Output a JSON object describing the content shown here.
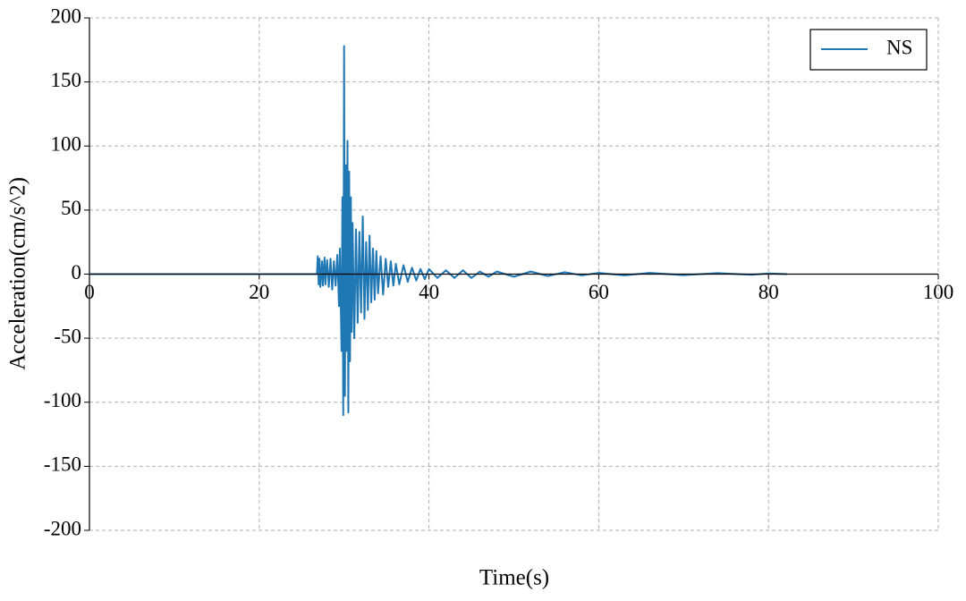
{
  "chart_data": {
    "type": "line",
    "xlabel": "Time(s)",
    "ylabel": "Acceleration(cm/s^2)",
    "x": [
      0,
      26.8,
      26.9,
      27.0,
      27.1,
      27.2,
      27.4,
      27.5,
      27.7,
      27.8,
      28.0,
      28.2,
      28.4,
      28.6,
      28.8,
      29.0,
      29.2,
      29.4,
      29.5,
      29.7,
      29.8,
      29.9,
      30.0,
      30.1,
      30.2,
      30.3,
      30.4,
      30.5,
      30.6,
      30.7,
      30.8,
      30.9,
      31.0,
      31.2,
      31.4,
      31.6,
      31.8,
      32.0,
      32.2,
      32.4,
      32.6,
      32.8,
      33.0,
      33.2,
      33.4,
      33.6,
      33.8,
      34.0,
      34.3,
      34.6,
      34.9,
      35.2,
      35.5,
      35.8,
      36.1,
      36.5,
      37.0,
      37.5,
      38.0,
      38.5,
      39.0,
      39.5,
      40.0,
      41.0,
      42.0,
      43.0,
      44.0,
      45.0,
      46.0,
      47.0,
      48.0,
      50,
      52,
      54,
      56,
      58,
      60,
      63,
      66,
      70,
      74,
      78,
      80,
      82.2
    ],
    "series": [
      {
        "name": "NS",
        "color": "#1f77b4",
        "values": [
          0,
          0,
          14,
          -8,
          12,
          -10,
          10,
          -9,
          13,
          -8,
          11,
          -10,
          12,
          -12,
          10,
          -9,
          15,
          -25,
          20,
          -60,
          60,
          -110,
          178,
          -95,
          85,
          -60,
          104,
          -108,
          80,
          -68,
          60,
          -45,
          40,
          -50,
          35,
          -38,
          33,
          -30,
          45,
          -35,
          25,
          -28,
          30,
          -22,
          20,
          -20,
          18,
          -15,
          14,
          -16,
          12,
          -10,
          10,
          -9,
          8,
          -8,
          7,
          -6,
          5,
          -5,
          4,
          -4,
          4,
          -3,
          3,
          -3,
          3,
          -3,
          2,
          -2,
          2,
          -2,
          2,
          -1.5,
          1.5,
          -1,
          1,
          -1,
          1,
          -0.8,
          0.8,
          -0.5,
          0.5,
          0
        ]
      }
    ],
    "xlim": [
      0,
      100
    ],
    "xticks": [
      0,
      20,
      40,
      60,
      80,
      100
    ],
    "ylim": [
      -200,
      200
    ],
    "yticks": [
      -200,
      -150,
      -100,
      -50,
      0,
      50,
      100,
      150,
      200
    ],
    "grid": true,
    "legend": "upper right"
  }
}
